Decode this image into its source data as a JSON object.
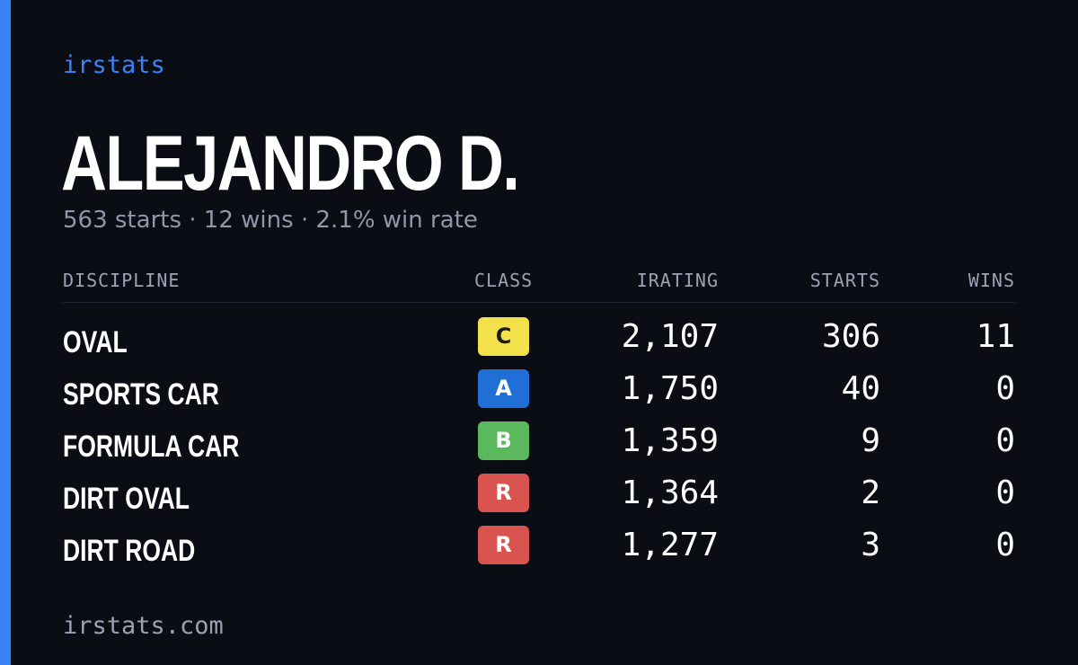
{
  "brand": "irstats",
  "driver": {
    "name": "ALEJANDRO D.",
    "summary": {
      "starts": "563 starts",
      "wins": "12 wins",
      "win_rate": "2.1% win rate",
      "separator": "·"
    }
  },
  "table": {
    "headers": {
      "discipline": "DISCIPLINE",
      "class": "CLASS",
      "irating": "IRATING",
      "starts": "STARTS",
      "wins": "WINS"
    },
    "rows": [
      {
        "discipline": "OVAL",
        "class": "C",
        "class_bg": "#f2e14b",
        "class_fg": "#1a1a1a",
        "irating": "2,107",
        "starts": "306",
        "wins": "11"
      },
      {
        "discipline": "SPORTS CAR",
        "class": "A",
        "class_bg": "#1f6fd6",
        "class_fg": "#ffffff",
        "irating": "1,750",
        "starts": "40",
        "wins": "0"
      },
      {
        "discipline": "FORMULA CAR",
        "class": "B",
        "class_bg": "#5cb85c",
        "class_fg": "#ffffff",
        "irating": "1,359",
        "starts": "9",
        "wins": "0"
      },
      {
        "discipline": "DIRT OVAL",
        "class": "R",
        "class_bg": "#d9534f",
        "class_fg": "#ffffff",
        "irating": "1,364",
        "starts": "2",
        "wins": "0"
      },
      {
        "discipline": "DIRT ROAD",
        "class": "R",
        "class_bg": "#d9534f",
        "class_fg": "#ffffff",
        "irating": "1,277",
        "starts": "3",
        "wins": "0"
      }
    ]
  },
  "footer": "irstats.com",
  "colors": {
    "background": "#0b0d14",
    "accent": "#3b82f6",
    "muted_text": "#8f97a8"
  }
}
